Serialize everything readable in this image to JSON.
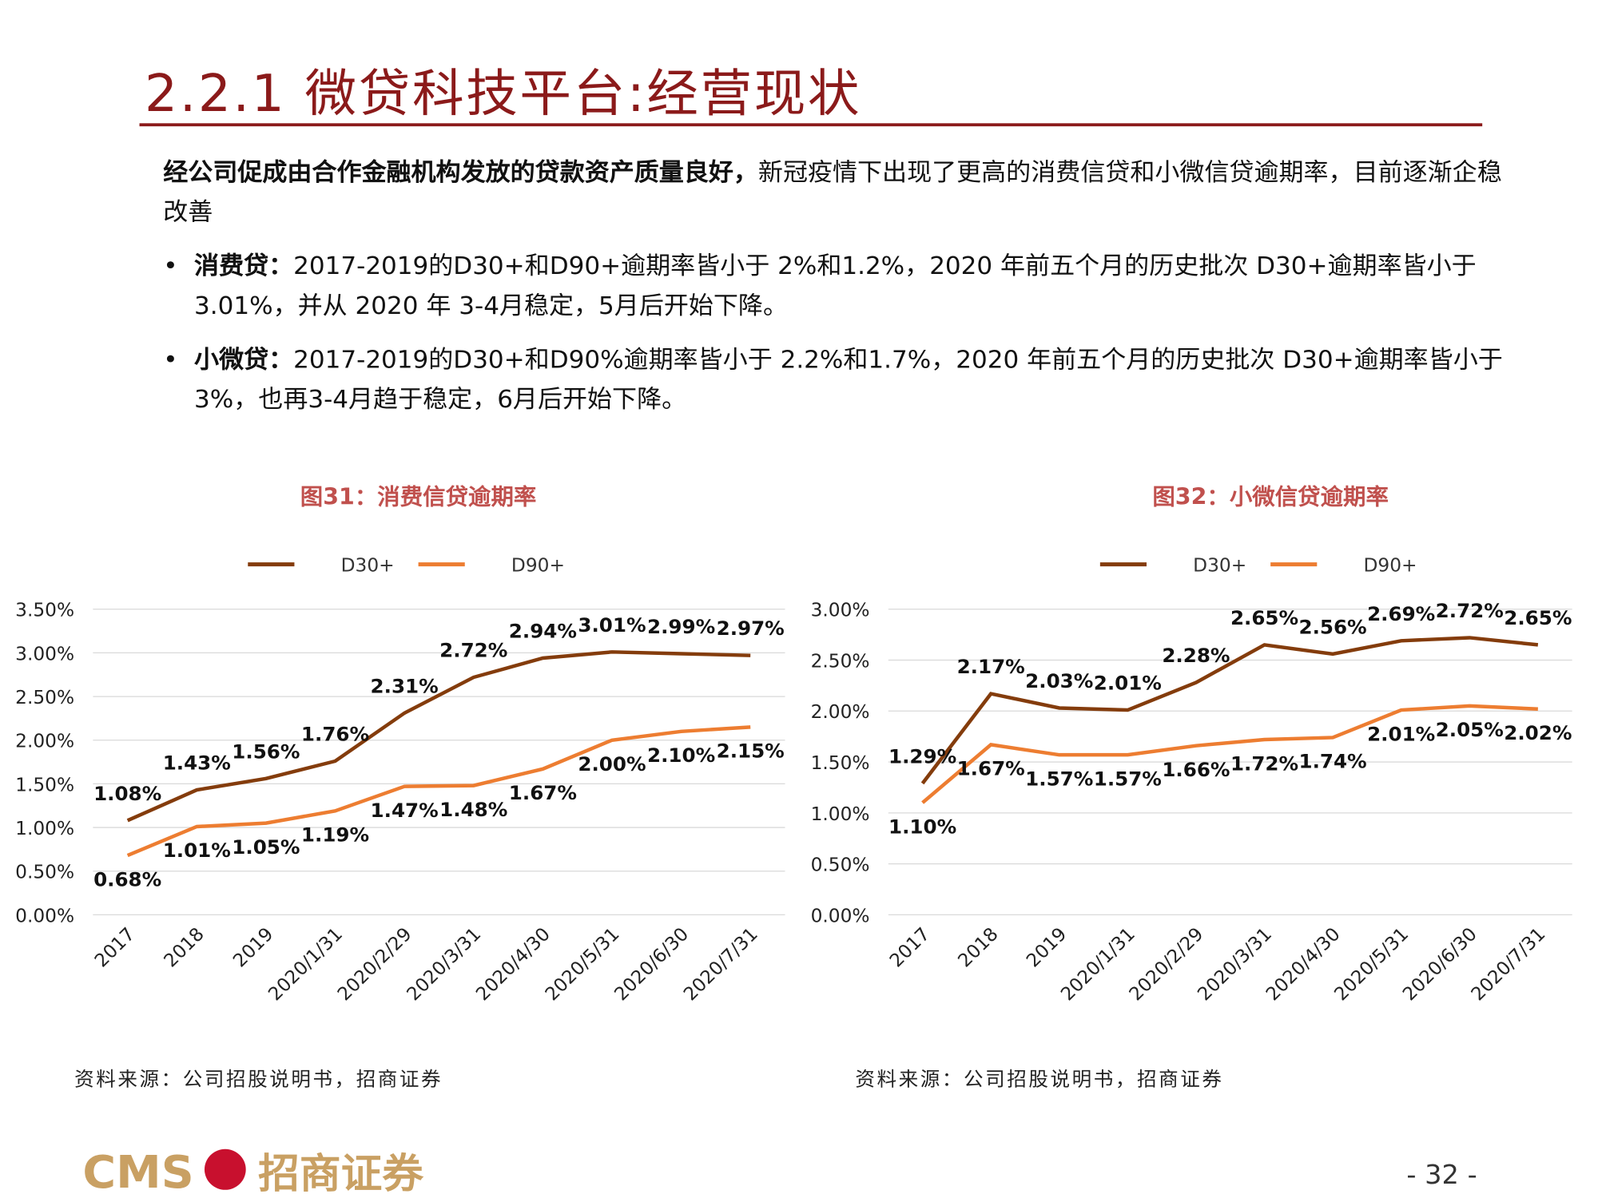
{
  "title": "2.2.1 微贷科技平台:经营现状",
  "intro": {
    "bold": "经公司促成由合作金融机构发放的贷款资产质量良好，",
    "text": "新冠疫情下出现了更高的消费信贷和小微信贷逾期率，目前逐渐企稳改善"
  },
  "bullets": [
    {
      "bold": "消费贷：",
      "text": "2017-2019的D30+和D90+逾期率皆小于 2%和1.2%，2020 年前五个月的历史批次 D30+逾期率皆小于 3.01%，并从 2020 年 3-4月稳定，5月后开始下降。"
    },
    {
      "bold": "小微贷：",
      "text": "2017-2019的D30+和D90%逾期率皆小于 2.2%和1.7%，2020 年前五个月的历史批次 D30+逾期率皆小于 3%，也再3-4月趋于稳定，6月后开始下降。"
    }
  ],
  "chart_data": [
    {
      "type": "line",
      "title": "图31：消费信贷逾期率",
      "categories": [
        "2017",
        "2018",
        "2019",
        "2020/1/31",
        "2020/2/29",
        "2020/3/31",
        "2020/4/30",
        "2020/5/31",
        "2020/6/30",
        "2020/7/31"
      ],
      "series": [
        {
          "name": "D30+",
          "color": "#843c0c",
          "values": [
            1.08,
            1.43,
            1.56,
            1.76,
            2.31,
            2.72,
            2.94,
            3.01,
            2.99,
            2.97
          ],
          "value_labels": [
            "1.08%",
            "1.43%",
            "1.56%",
            "1.76%",
            "2.31%",
            "2.72%",
            "2.94%",
            "3.01%",
            "2.99%",
            "2.97%"
          ]
        },
        {
          "name": "D90+",
          "color": "#ed7d31",
          "values": [
            0.68,
            1.01,
            1.05,
            1.19,
            1.47,
            1.48,
            1.67,
            2.0,
            2.1,
            2.15
          ],
          "value_labels": [
            "0.68%",
            "1.01%",
            "1.05%",
            "1.19%",
            "1.47%",
            "1.48%",
            "1.67%",
            "2.00%",
            "2.10%",
            "2.15%"
          ]
        }
      ],
      "ylim": [
        0,
        3.5
      ],
      "yticks": [
        {
          "value": 0,
          "label": "0.00%"
        },
        {
          "value": 0.5,
          "label": "0.50%"
        },
        {
          "value": 1,
          "label": "1.00%"
        },
        {
          "value": 1.5,
          "label": "1.50%"
        },
        {
          "value": 2,
          "label": "2.00%"
        },
        {
          "value": 2.5,
          "label": "2.50%"
        },
        {
          "value": 3,
          "label": "3.00%"
        },
        {
          "value": 3.5,
          "label": "3.50%"
        }
      ],
      "grid": true,
      "legend": "top",
      "source": "资料来源：公司招股说明书，招商证券"
    },
    {
      "type": "line",
      "title": "图32：小微信贷逾期率",
      "categories": [
        "2017",
        "2018",
        "2019",
        "2020/1/31",
        "2020/2/29",
        "2020/3/31",
        "2020/4/30",
        "2020/5/31",
        "2020/6/30",
        "2020/7/31"
      ],
      "series": [
        {
          "name": "D30+",
          "color": "#843c0c",
          "values": [
            1.29,
            2.17,
            2.03,
            2.01,
            2.28,
            2.65,
            2.56,
            2.69,
            2.72,
            2.65
          ],
          "value_labels": [
            "1.29%",
            "2.17%",
            "2.03%",
            "2.01%",
            "2.28%",
            "2.65%",
            "2.56%",
            "2.69%",
            "2.72%",
            "2.65%"
          ]
        },
        {
          "name": "D90+",
          "color": "#ed7d31",
          "values": [
            1.1,
            1.67,
            1.57,
            1.57,
            1.66,
            1.72,
            1.74,
            2.01,
            2.05,
            2.02
          ],
          "value_labels": [
            "1.10%",
            "1.67%",
            "1.57%",
            "1.57%",
            "1.66%",
            "1.72%",
            "1.74%",
            "2.01%",
            "2.05%",
            "2.02%"
          ]
        }
      ],
      "ylim": [
        0,
        3
      ],
      "yticks": [
        {
          "value": 0,
          "label": "0.00%"
        },
        {
          "value": 0.5,
          "label": "0.50%"
        },
        {
          "value": 1,
          "label": "1.00%"
        },
        {
          "value": 1.5,
          "label": "1.50%"
        },
        {
          "value": 2,
          "label": "2.00%"
        },
        {
          "value": 2.5,
          "label": "2.50%"
        },
        {
          "value": 3,
          "label": "3.00%"
        }
      ],
      "grid": true,
      "legend": "top",
      "source": "资料来源：公司招股说明书，招商证券"
    }
  ],
  "footer": {
    "logo_en": "CMS",
    "logo_cn": "招商证券",
    "page": "- 32 -"
  }
}
